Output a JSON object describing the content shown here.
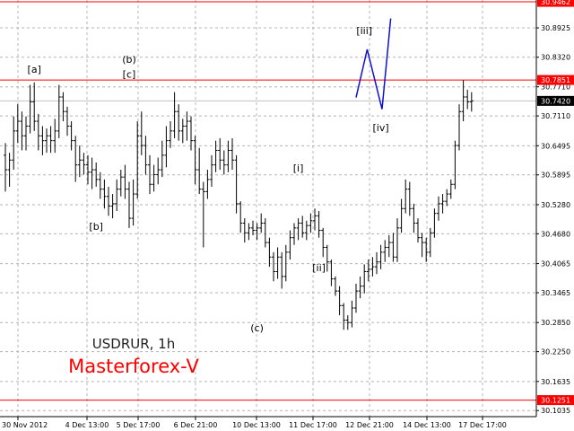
{
  "chart_data": {
    "type": "ohlc",
    "symbol_label": "USDRUR, 1h",
    "broker_label": "Masterforex-V",
    "ylim": [
      30.091,
      30.95
    ],
    "grid": true,
    "y_ticks": [
      "30.8925",
      "30.8320",
      "30.7710",
      "30.7110",
      "30.6495",
      "30.5895",
      "30.5280",
      "30.4680",
      "30.4065",
      "30.3465",
      "30.2850",
      "30.2250",
      "30.1635",
      "30.1035"
    ],
    "x_ticks": [
      "30 Nov 2012",
      "4 Dec 13:00",
      "5 Dec 17:00",
      "6 Dec 21:00",
      "10 Dec 13:00",
      "11 Dec 17:00",
      "12 Dec 21:00",
      "14 Dec 13:00",
      "17 Dec 17:00"
    ],
    "levels": [
      {
        "value": 30.9462,
        "label": "30.9462",
        "color": "#ff0000"
      },
      {
        "value": 30.7851,
        "label": "30.7851",
        "color": "#ff0000"
      },
      {
        "value": 30.742,
        "label": "30.7420",
        "color": "#c0c0c0"
      },
      {
        "value": 30.1251,
        "label": "30.1251",
        "color": "#ff0000"
      }
    ],
    "wave_labels": [
      {
        "text": "[a]",
        "value": 30.8,
        "bar": 7
      },
      {
        "text": "(b)",
        "value": 30.82,
        "bar": 30
      },
      {
        "text": "[c]",
        "value": 30.79,
        "bar": 30
      },
      {
        "text": "[b]",
        "value": 30.476,
        "bar": 22
      },
      {
        "text": "(c)",
        "value": 30.267,
        "bar": 61
      },
      {
        "text": "[i]",
        "value": 30.596,
        "bar": 71
      },
      {
        "text": "[ii]",
        "value": 30.391,
        "bar": 76
      },
      {
        "text": "[iii]",
        "value": 30.88,
        "bar": 87
      },
      {
        "text": "[iv]",
        "value": 30.68,
        "bar": 91
      }
    ],
    "projection": [
      {
        "bar": 85.0,
        "value": 30.749
      },
      {
        "bar": 87.7,
        "value": 30.848
      },
      {
        "bar": 91.3,
        "value": 30.725
      },
      {
        "bar": 93.4,
        "value": 30.912
      }
    ],
    "colors": {
      "bars": "#000000",
      "grid": "#b4b4b4",
      "projection": "#1010d0",
      "title": "#202020",
      "brand": "#ff0000",
      "label_bg": "#ff0000",
      "current_bg": "#000000"
    },
    "bars": [
      {
        "o": 30.63,
        "h": 30.655,
        "l": 30.555,
        "c": 30.6
      },
      {
        "o": 30.6,
        "h": 30.635,
        "l": 30.565,
        "c": 30.62
      },
      {
        "o": 30.62,
        "h": 30.71,
        "l": 30.6,
        "c": 30.68
      },
      {
        "o": 30.68,
        "h": 30.735,
        "l": 30.655,
        "c": 30.7
      },
      {
        "o": 30.7,
        "h": 30.72,
        "l": 30.64,
        "c": 30.67
      },
      {
        "o": 30.67,
        "h": 30.71,
        "l": 30.64,
        "c": 30.69
      },
      {
        "o": 30.69,
        "h": 30.775,
        "l": 30.675,
        "c": 30.74
      },
      {
        "o": 30.74,
        "h": 30.78,
        "l": 30.68,
        "c": 30.7
      },
      {
        "o": 30.7,
        "h": 30.715,
        "l": 30.64,
        "c": 30.67
      },
      {
        "o": 30.67,
        "h": 30.69,
        "l": 30.63,
        "c": 30.66
      },
      {
        "o": 30.66,
        "h": 30.685,
        "l": 30.635,
        "c": 30.67
      },
      {
        "o": 30.67,
        "h": 30.69,
        "l": 30.635,
        "c": 30.66
      },
      {
        "o": 30.66,
        "h": 30.705,
        "l": 30.635,
        "c": 30.68
      },
      {
        "o": 30.68,
        "h": 30.775,
        "l": 30.665,
        "c": 30.75
      },
      {
        "o": 30.75,
        "h": 30.76,
        "l": 30.7,
        "c": 30.72
      },
      {
        "o": 30.72,
        "h": 30.73,
        "l": 30.67,
        "c": 30.69
      },
      {
        "o": 30.69,
        "h": 30.7,
        "l": 30.64,
        "c": 30.66
      },
      {
        "o": 30.66,
        "h": 30.67,
        "l": 30.575,
        "c": 30.61
      },
      {
        "o": 30.61,
        "h": 30.65,
        "l": 30.585,
        "c": 30.62
      },
      {
        "o": 30.62,
        "h": 30.635,
        "l": 30.59,
        "c": 30.61
      },
      {
        "o": 30.61,
        "h": 30.63,
        "l": 30.57,
        "c": 30.595
      },
      {
        "o": 30.595,
        "h": 30.625,
        "l": 30.56,
        "c": 30.6
      },
      {
        "o": 30.6,
        "h": 30.615,
        "l": 30.565,
        "c": 30.58
      },
      {
        "o": 30.58,
        "h": 30.595,
        "l": 30.54,
        "c": 30.56
      },
      {
        "o": 30.56,
        "h": 30.58,
        "l": 30.52,
        "c": 30.545
      },
      {
        "o": 30.545,
        "h": 30.565,
        "l": 30.505,
        "c": 30.525
      },
      {
        "o": 30.525,
        "h": 30.55,
        "l": 30.5,
        "c": 30.53
      },
      {
        "o": 30.53,
        "h": 30.58,
        "l": 30.515,
        "c": 30.56
      },
      {
        "o": 30.56,
        "h": 30.6,
        "l": 30.545,
        "c": 30.585
      },
      {
        "o": 30.585,
        "h": 30.61,
        "l": 30.54,
        "c": 30.56
      },
      {
        "o": 30.56,
        "h": 30.575,
        "l": 30.48,
        "c": 30.5
      },
      {
        "o": 30.5,
        "h": 30.58,
        "l": 30.485,
        "c": 30.55
      },
      {
        "o": 30.55,
        "h": 30.7,
        "l": 30.54,
        "c": 30.67
      },
      {
        "o": 30.67,
        "h": 30.72,
        "l": 30.63,
        "c": 30.65
      },
      {
        "o": 30.65,
        "h": 30.67,
        "l": 30.59,
        "c": 30.61
      },
      {
        "o": 30.61,
        "h": 30.63,
        "l": 30.55,
        "c": 30.57
      },
      {
        "o": 30.57,
        "h": 30.61,
        "l": 30.555,
        "c": 30.59
      },
      {
        "o": 30.59,
        "h": 30.625,
        "l": 30.57,
        "c": 30.6
      },
      {
        "o": 30.6,
        "h": 30.66,
        "l": 30.585,
        "c": 30.63
      },
      {
        "o": 30.63,
        "h": 30.69,
        "l": 30.605,
        "c": 30.66
      },
      {
        "o": 30.66,
        "h": 30.7,
        "l": 30.645,
        "c": 30.68
      },
      {
        "o": 30.68,
        "h": 30.76,
        "l": 30.665,
        "c": 30.72
      },
      {
        "o": 30.72,
        "h": 30.735,
        "l": 30.66,
        "c": 30.68
      },
      {
        "o": 30.68,
        "h": 30.705,
        "l": 30.655,
        "c": 30.69
      },
      {
        "o": 30.69,
        "h": 30.72,
        "l": 30.66,
        "c": 30.7
      },
      {
        "o": 30.7,
        "h": 30.71,
        "l": 30.64,
        "c": 30.66
      },
      {
        "o": 30.66,
        "h": 30.67,
        "l": 30.57,
        "c": 30.6
      },
      {
        "o": 30.6,
        "h": 30.645,
        "l": 30.55,
        "c": 30.56
      },
      {
        "o": 30.56,
        "h": 30.575,
        "l": 30.44,
        "c": 30.555
      },
      {
        "o": 30.555,
        "h": 30.6,
        "l": 30.54,
        "c": 30.58
      },
      {
        "o": 30.58,
        "h": 30.63,
        "l": 30.565,
        "c": 30.61
      },
      {
        "o": 30.61,
        "h": 30.66,
        "l": 30.595,
        "c": 30.64
      },
      {
        "o": 30.64,
        "h": 30.665,
        "l": 30.6,
        "c": 30.62
      },
      {
        "o": 30.62,
        "h": 30.64,
        "l": 30.59,
        "c": 30.61
      },
      {
        "o": 30.61,
        "h": 30.66,
        "l": 30.595,
        "c": 30.64
      },
      {
        "o": 30.64,
        "h": 30.665,
        "l": 30.6,
        "c": 30.62
      },
      {
        "o": 30.62,
        "h": 30.63,
        "l": 30.51,
        "c": 30.53
      },
      {
        "o": 30.53,
        "h": 30.535,
        "l": 30.47,
        "c": 30.49
      },
      {
        "o": 30.49,
        "h": 30.5,
        "l": 30.45,
        "c": 30.47
      },
      {
        "o": 30.47,
        "h": 30.49,
        "l": 30.455,
        "c": 30.48
      },
      {
        "o": 30.48,
        "h": 30.495,
        "l": 30.465,
        "c": 30.475
      },
      {
        "o": 30.475,
        "h": 30.49,
        "l": 30.455,
        "c": 30.48
      },
      {
        "o": 30.48,
        "h": 30.51,
        "l": 30.47,
        "c": 30.49
      },
      {
        "o": 30.49,
        "h": 30.5,
        "l": 30.44,
        "c": 30.45
      },
      {
        "o": 30.45,
        "h": 30.46,
        "l": 30.4,
        "c": 30.42
      },
      {
        "o": 30.42,
        "h": 30.43,
        "l": 30.37,
        "c": 30.39
      },
      {
        "o": 30.39,
        "h": 30.44,
        "l": 30.375,
        "c": 30.42
      },
      {
        "o": 30.42,
        "h": 30.43,
        "l": 30.355,
        "c": 30.38
      },
      {
        "o": 30.38,
        "h": 30.445,
        "l": 30.37,
        "c": 30.43
      },
      {
        "o": 30.43,
        "h": 30.475,
        "l": 30.415,
        "c": 30.46
      },
      {
        "o": 30.46,
        "h": 30.49,
        "l": 30.445,
        "c": 30.48
      },
      {
        "o": 30.48,
        "h": 30.5,
        "l": 30.455,
        "c": 30.49
      },
      {
        "o": 30.49,
        "h": 30.505,
        "l": 30.46,
        "c": 30.47
      },
      {
        "o": 30.47,
        "h": 30.495,
        "l": 30.455,
        "c": 30.485
      },
      {
        "o": 30.485,
        "h": 30.51,
        "l": 30.47,
        "c": 30.495
      },
      {
        "o": 30.495,
        "h": 30.52,
        "l": 30.475,
        "c": 30.505
      },
      {
        "o": 30.505,
        "h": 30.515,
        "l": 30.46,
        "c": 30.475
      },
      {
        "o": 30.475,
        "h": 30.48,
        "l": 30.42,
        "c": 30.44
      },
      {
        "o": 30.44,
        "h": 30.445,
        "l": 30.39,
        "c": 30.41
      },
      {
        "o": 30.41,
        "h": 30.415,
        "l": 30.36,
        "c": 30.375
      },
      {
        "o": 30.375,
        "h": 30.38,
        "l": 30.34,
        "c": 30.35
      },
      {
        "o": 30.35,
        "h": 30.36,
        "l": 30.3,
        "c": 30.32
      },
      {
        "o": 30.32,
        "h": 30.325,
        "l": 30.27,
        "c": 30.29
      },
      {
        "o": 30.29,
        "h": 30.3,
        "l": 30.27,
        "c": 30.285
      },
      {
        "o": 30.285,
        "h": 30.33,
        "l": 30.275,
        "c": 30.315
      },
      {
        "o": 30.315,
        "h": 30.365,
        "l": 30.305,
        "c": 30.35
      },
      {
        "o": 30.35,
        "h": 30.38,
        "l": 30.335,
        "c": 30.36
      },
      {
        "o": 30.36,
        "h": 30.405,
        "l": 30.345,
        "c": 30.39
      },
      {
        "o": 30.39,
        "h": 30.415,
        "l": 30.37,
        "c": 30.395
      },
      {
        "o": 30.395,
        "h": 30.42,
        "l": 30.38,
        "c": 30.4
      },
      {
        "o": 30.4,
        "h": 30.43,
        "l": 30.385,
        "c": 30.41
      },
      {
        "o": 30.41,
        "h": 30.445,
        "l": 30.395,
        "c": 30.43
      },
      {
        "o": 30.43,
        "h": 30.455,
        "l": 30.41,
        "c": 30.44
      },
      {
        "o": 30.44,
        "h": 30.465,
        "l": 30.42,
        "c": 30.45
      },
      {
        "o": 30.45,
        "h": 30.47,
        "l": 30.41,
        "c": 30.42
      },
      {
        "o": 30.42,
        "h": 30.5,
        "l": 30.41,
        "c": 30.48
      },
      {
        "o": 30.48,
        "h": 30.54,
        "l": 30.47,
        "c": 30.52
      },
      {
        "o": 30.52,
        "h": 30.58,
        "l": 30.51,
        "c": 30.56
      },
      {
        "o": 30.56,
        "h": 30.575,
        "l": 30.505,
        "c": 30.52
      },
      {
        "o": 30.52,
        "h": 30.53,
        "l": 30.47,
        "c": 30.49
      },
      {
        "o": 30.49,
        "h": 30.5,
        "l": 30.45,
        "c": 30.46
      },
      {
        "o": 30.46,
        "h": 30.47,
        "l": 30.42,
        "c": 30.45
      },
      {
        "o": 30.45,
        "h": 30.46,
        "l": 30.41,
        "c": 30.43
      },
      {
        "o": 30.43,
        "h": 30.48,
        "l": 30.42,
        "c": 30.47
      },
      {
        "o": 30.47,
        "h": 30.52,
        "l": 30.46,
        "c": 30.51
      },
      {
        "o": 30.51,
        "h": 30.545,
        "l": 30.495,
        "c": 30.53
      },
      {
        "o": 30.53,
        "h": 30.55,
        "l": 30.51,
        "c": 30.535
      },
      {
        "o": 30.535,
        "h": 30.56,
        "l": 30.525,
        "c": 30.55
      },
      {
        "o": 30.55,
        "h": 30.58,
        "l": 30.54,
        "c": 30.57
      },
      {
        "o": 30.57,
        "h": 30.66,
        "l": 30.56,
        "c": 30.65
      },
      {
        "o": 30.65,
        "h": 30.735,
        "l": 30.64,
        "c": 30.72
      },
      {
        "o": 30.72,
        "h": 30.785,
        "l": 30.7,
        "c": 30.75
      },
      {
        "o": 30.75,
        "h": 30.765,
        "l": 30.725,
        "c": 30.74
      },
      {
        "o": 30.74,
        "h": 30.76,
        "l": 30.72,
        "c": 30.742
      }
    ]
  }
}
